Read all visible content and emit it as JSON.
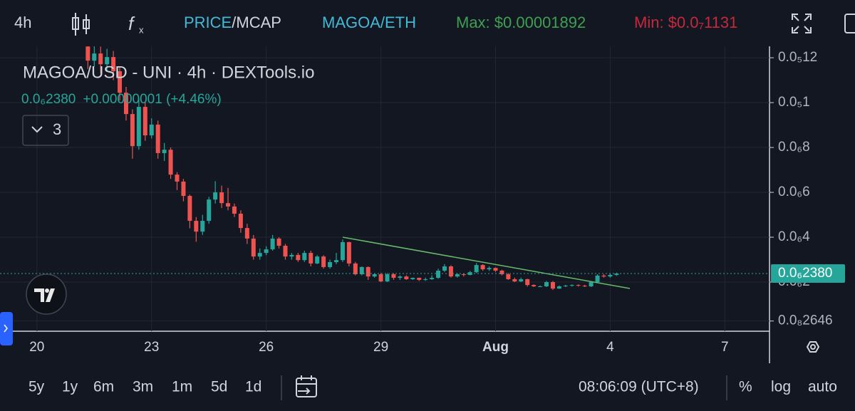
{
  "toolbar": {
    "interval": "4h",
    "price": "PRICE",
    "mcap": "/MCAP",
    "pair": "MAGOA/ETH",
    "max": "Max: $0.00001892",
    "min": "Min: $0.0₇1131"
  },
  "chart_data": {
    "type": "candlestick",
    "title": "MAGOA/USD - UNI · 4h · DEXTools.io",
    "change": "+0.00000001 (+4.46%)",
    "indicators": "3",
    "last_price": {
      "value": 2.38e-08,
      "label": "0.0₆2380"
    },
    "up_color": "#26a69a",
    "down_color": "#ef5350",
    "grid": true,
    "ylim": [
      -1.9e-09,
      1.251e-07
    ],
    "yticks": [
      {
        "value": 2.646e-09,
        "label": "0.0₈2646"
      },
      {
        "value": 2e-08,
        "label": "0.0₆2"
      },
      {
        "value": 4e-08,
        "label": "0.0₆4"
      },
      {
        "value": 6e-08,
        "label": "0.0₆6"
      },
      {
        "value": 8e-08,
        "label": "0.0₆8"
      },
      {
        "value": 1e-07,
        "label": "0.0₅1"
      },
      {
        "value": 1.2e-07,
        "label": "0.0₅12"
      }
    ],
    "categories": [
      null,
      null,
      null,
      "20",
      null,
      null,
      null,
      null,
      null,
      null,
      null,
      null,
      null,
      null,
      null,
      null,
      null,
      null,
      null,
      null,
      null,
      "23",
      null,
      null,
      null,
      null,
      null,
      null,
      null,
      null,
      null,
      null,
      null,
      null,
      null,
      null,
      null,
      null,
      null,
      "26",
      null,
      null,
      null,
      null,
      null,
      null,
      null,
      null,
      null,
      null,
      null,
      null,
      null,
      null,
      null,
      null,
      null,
      "29",
      null,
      null,
      null,
      null,
      null,
      null,
      null,
      null,
      null,
      null,
      null,
      null,
      null,
      null,
      null,
      null,
      null,
      "Aug",
      null,
      null,
      null,
      null,
      null,
      null,
      null,
      null,
      null,
      null,
      null,
      null,
      null,
      null,
      null,
      null,
      null,
      "4",
      null,
      null,
      null,
      null,
      null,
      null,
      null,
      null,
      null,
      null,
      null,
      null,
      null,
      null,
      null,
      null,
      null,
      "7",
      null,
      null,
      null,
      null,
      null,
      null
    ],
    "open": [
      null,
      null,
      null,
      null,
      null,
      null,
      null,
      null,
      null,
      null,
      null,
      1.25e-07,
      1.187e-07,
      1.219e-07,
      1.171e-07,
      1.203e-07,
      1.14e-07,
      1.044e-07,
      9.49e-08,
      8.06e-08,
      9.81e-08,
      8.54e-08,
      9.02e-08,
      7.75e-08,
      7.9e-08,
      6.79e-08,
      6.48e-08,
      5.84e-08,
      4.73e-08,
      4.25e-08,
      4.73e-08,
      5.68e-08,
      6e-08,
      5.52e-08,
      5.37e-08,
      5.05e-08,
      4.41e-08,
      3.94e-08,
      3.14e-08,
      3.3e-08,
      3.46e-08,
      3.94e-08,
      3.62e-08,
      3.14e-08,
      3.21e-08,
      2.98e-08,
      3.3e-08,
      2.83e-08,
      3.14e-08,
      2.67e-08,
      2.89e-08,
      2.98e-08,
      3.78e-08,
      2.83e-08,
      2.35e-08,
      2.67e-08,
      2.25e-08,
      2.35e-08,
      2.03e-08,
      2.35e-08,
      2.19e-08,
      2.25e-08,
      2.13e-08,
      2.19e-08,
      2.1e-08,
      2.13e-08,
      2.19e-08,
      2.51e-08,
      2.7e-08,
      2.25e-08,
      2.35e-08,
      2.32e-08,
      2.44e-08,
      2.76e-08,
      2.57e-08,
      2.63e-08,
      2.51e-08,
      2.35e-08,
      2.13e-08,
      2.03e-08,
      2.13e-08,
      1.87e-08,
      1.81e-08,
      1.81e-08,
      2e-08,
      1.71e-08,
      1.81e-08,
      1.84e-08,
      1.87e-08,
      1.84e-08,
      1.81e-08,
      2e-08,
      2.29e-08,
      2.25e-08,
      2.32e-08,
      null,
      null,
      null,
      null,
      null,
      null,
      null,
      null,
      null,
      null,
      null,
      null,
      null,
      null,
      null,
      null,
      null,
      null,
      null,
      null,
      null,
      null,
      null
    ],
    "high": [
      null,
      null,
      null,
      null,
      null,
      null,
      null,
      null,
      null,
      null,
      null,
      1.29e-07,
      1.26e-07,
      1.25e-07,
      1.24e-07,
      1.23e-07,
      1.16e-07,
      1.07e-07,
      9.7e-08,
      1.02e-07,
      1e-07,
      9.3e-08,
      9.2e-08,
      8.2e-08,
      8e-08,
      6.9e-08,
      6.6e-08,
      5.9e-08,
      4.9e-08,
      5e-08,
      5.8e-08,
      6.5e-08,
      6.3e-08,
      6.2e-08,
      5.5e-08,
      5.2e-08,
      4.6e-08,
      4.1e-08,
      3.5e-08,
      3.6e-08,
      4.1e-08,
      4e-08,
      3.7e-08,
      3.3e-08,
      3.3e-08,
      3.4e-08,
      3.4e-08,
      3.2e-08,
      3.2e-08,
      3e-08,
      3.3e-08,
      3.9e-08,
      3.8e-08,
      2.9e-08,
      2.7e-08,
      2.7e-08,
      2.4e-08,
      2.4e-08,
      2.4e-08,
      2.4e-08,
      2.3e-08,
      2.3e-08,
      2.2e-08,
      2.2e-08,
      2.2e-08,
      2.3e-08,
      2.6e-08,
      2.8e-08,
      2.75e-08,
      2.4e-08,
      2.4e-08,
      2.5e-08,
      2.85e-08,
      2.8e-08,
      2.7e-08,
      2.65e-08,
      2.55e-08,
      2.4e-08,
      2.2e-08,
      2.2e-08,
      2.15e-08,
      1.9e-08,
      1.85e-08,
      2.05e-08,
      2.05e-08,
      1.85e-08,
      1.88e-08,
      1.9e-08,
      1.9e-08,
      1.88e-08,
      2.05e-08,
      2.35e-08,
      2.35e-08,
      2.38e-08,
      2.42e-08,
      null,
      null,
      null,
      null,
      null,
      null,
      null,
      null,
      null,
      null,
      null,
      null,
      null,
      null,
      null,
      null,
      null,
      null,
      null,
      null,
      null,
      null,
      null
    ],
    "low": [
      null,
      null,
      null,
      null,
      null,
      null,
      null,
      null,
      null,
      null,
      null,
      1.15e-07,
      1.16e-07,
      1.13e-07,
      1.14e-07,
      1.1e-07,
      1.01e-07,
      9.2e-08,
      7.5e-08,
      7.9e-08,
      8.3e-08,
      8.4e-08,
      7.5e-08,
      7.4e-08,
      6.6e-08,
      6.1e-08,
      5.6e-08,
      4.4e-08,
      3.8e-08,
      4.1e-08,
      4.6e-08,
      5.5e-08,
      5.3e-08,
      5.2e-08,
      4.9e-08,
      4.2e-08,
      3.7e-08,
      3e-08,
      3e-08,
      3.2e-08,
      3.4e-08,
      3.5e-08,
      3e-08,
      3e-08,
      2.9e-08,
      2.9e-08,
      2.7e-08,
      2.8e-08,
      2.6e-08,
      2.6e-08,
      2.8e-08,
      2.9e-08,
      2.7e-08,
      2.3e-08,
      2.3e-08,
      2.1e-08,
      2.2e-08,
      2e-08,
      2e-08,
      2.1e-08,
      2.1e-08,
      2.1e-08,
      2.1e-08,
      2.05e-08,
      2.05e-08,
      2.1e-08,
      2.15e-08,
      2.45e-08,
      2.2e-08,
      2.2e-08,
      2.25e-08,
      2.3e-08,
      2.4e-08,
      2.5e-08,
      2.5e-08,
      2.45e-08,
      2.3e-08,
      2.1e-08,
      2e-08,
      2e-08,
      1.8e-08,
      1.78e-08,
      1.78e-08,
      1.78e-08,
      1.65e-08,
      1.7e-08,
      1.78e-08,
      1.8e-08,
      1.8e-08,
      1.78e-08,
      1.78e-08,
      1.98e-08,
      2.2e-08,
      2.2e-08,
      2.28e-08,
      null,
      null,
      null,
      null,
      null,
      null,
      null,
      null,
      null,
      null,
      null,
      null,
      null,
      null,
      null,
      null,
      null,
      null,
      null,
      null,
      null,
      null,
      null
    ],
    "close": [
      null,
      null,
      null,
      null,
      null,
      null,
      null,
      null,
      null,
      null,
      null,
      1.187e-07,
      1.219e-07,
      1.171e-07,
      1.203e-07,
      1.14e-07,
      1.044e-07,
      9.49e-08,
      8.06e-08,
      9.81e-08,
      8.54e-08,
      9.02e-08,
      7.75e-08,
      7.9e-08,
      6.79e-08,
      6.48e-08,
      5.84e-08,
      4.73e-08,
      4.25e-08,
      4.73e-08,
      5.68e-08,
      6e-08,
      5.52e-08,
      5.37e-08,
      5.05e-08,
      4.41e-08,
      3.94e-08,
      3.14e-08,
      3.3e-08,
      3.46e-08,
      3.94e-08,
      3.62e-08,
      3.14e-08,
      3.21e-08,
      2.98e-08,
      3.3e-08,
      2.83e-08,
      3.14e-08,
      2.67e-08,
      2.89e-08,
      2.98e-08,
      3.78e-08,
      2.83e-08,
      2.35e-08,
      2.67e-08,
      2.25e-08,
      2.35e-08,
      2.03e-08,
      2.35e-08,
      2.19e-08,
      2.25e-08,
      2.13e-08,
      2.19e-08,
      2.1e-08,
      2.13e-08,
      2.19e-08,
      2.51e-08,
      2.7e-08,
      2.25e-08,
      2.35e-08,
      2.32e-08,
      2.44e-08,
      2.76e-08,
      2.57e-08,
      2.63e-08,
      2.51e-08,
      2.35e-08,
      2.13e-08,
      2.03e-08,
      2.13e-08,
      1.87e-08,
      1.81e-08,
      1.81e-08,
      2e-08,
      1.71e-08,
      1.81e-08,
      1.84e-08,
      1.87e-08,
      1.84e-08,
      1.81e-08,
      2e-08,
      2.29e-08,
      2.25e-08,
      2.32e-08,
      2.38e-08,
      null,
      null,
      null,
      null,
      null,
      null,
      null,
      null,
      null,
      null,
      null,
      null,
      null,
      null,
      null,
      null,
      null,
      null,
      null,
      null,
      null,
      null,
      null
    ]
  },
  "footer": {
    "ranges": [
      "5y",
      "1y",
      "6m",
      "3m",
      "1m",
      "5d",
      "1d"
    ],
    "time": "08:06:09 (UTC+8)",
    "percent": "%",
    "log": "log",
    "auto": "auto"
  }
}
